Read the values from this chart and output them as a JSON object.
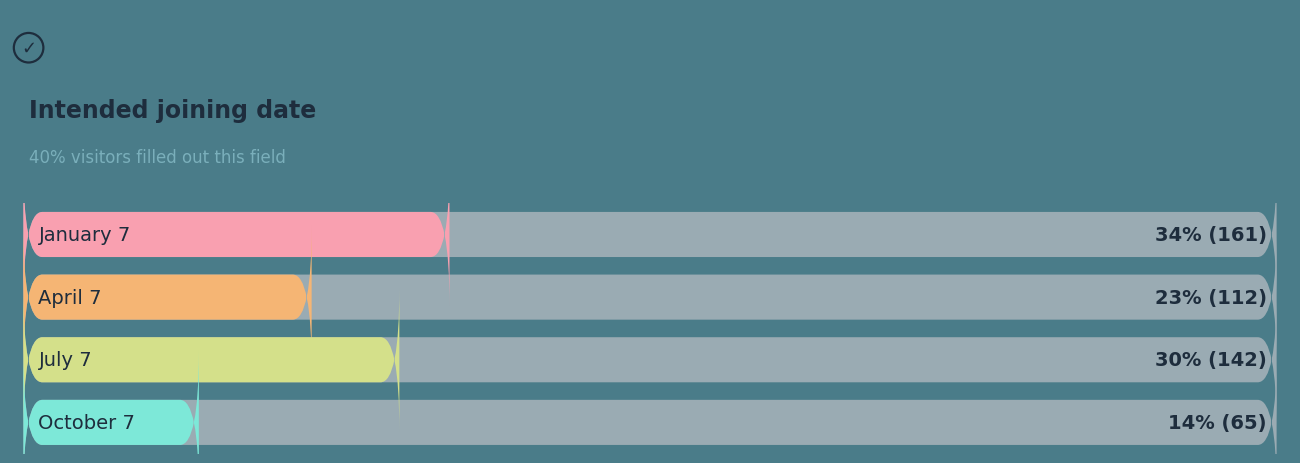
{
  "title": "Intended joining date",
  "subtitle": "40% visitors filled out this field",
  "background_color": "#4a7c89",
  "bar_bg_color": "#9aabb3",
  "categories": [
    "January 7",
    "April 7",
    "July 7",
    "October 7"
  ],
  "percentages": [
    34,
    23,
    30,
    14
  ],
  "counts": [
    161,
    112,
    142,
    65
  ],
  "bar_colors": [
    "#f9a0b0",
    "#f5b574",
    "#d4e08a",
    "#7de8d8"
  ],
  "bar_height": 0.72,
  "label_fontsize": 14,
  "title_fontsize": 17,
  "subtitle_fontsize": 12,
  "value_fontsize": 14,
  "text_color": "#1e2d3d",
  "subtitle_color": "#7aafbb",
  "icon_color": "#1e2d3d"
}
